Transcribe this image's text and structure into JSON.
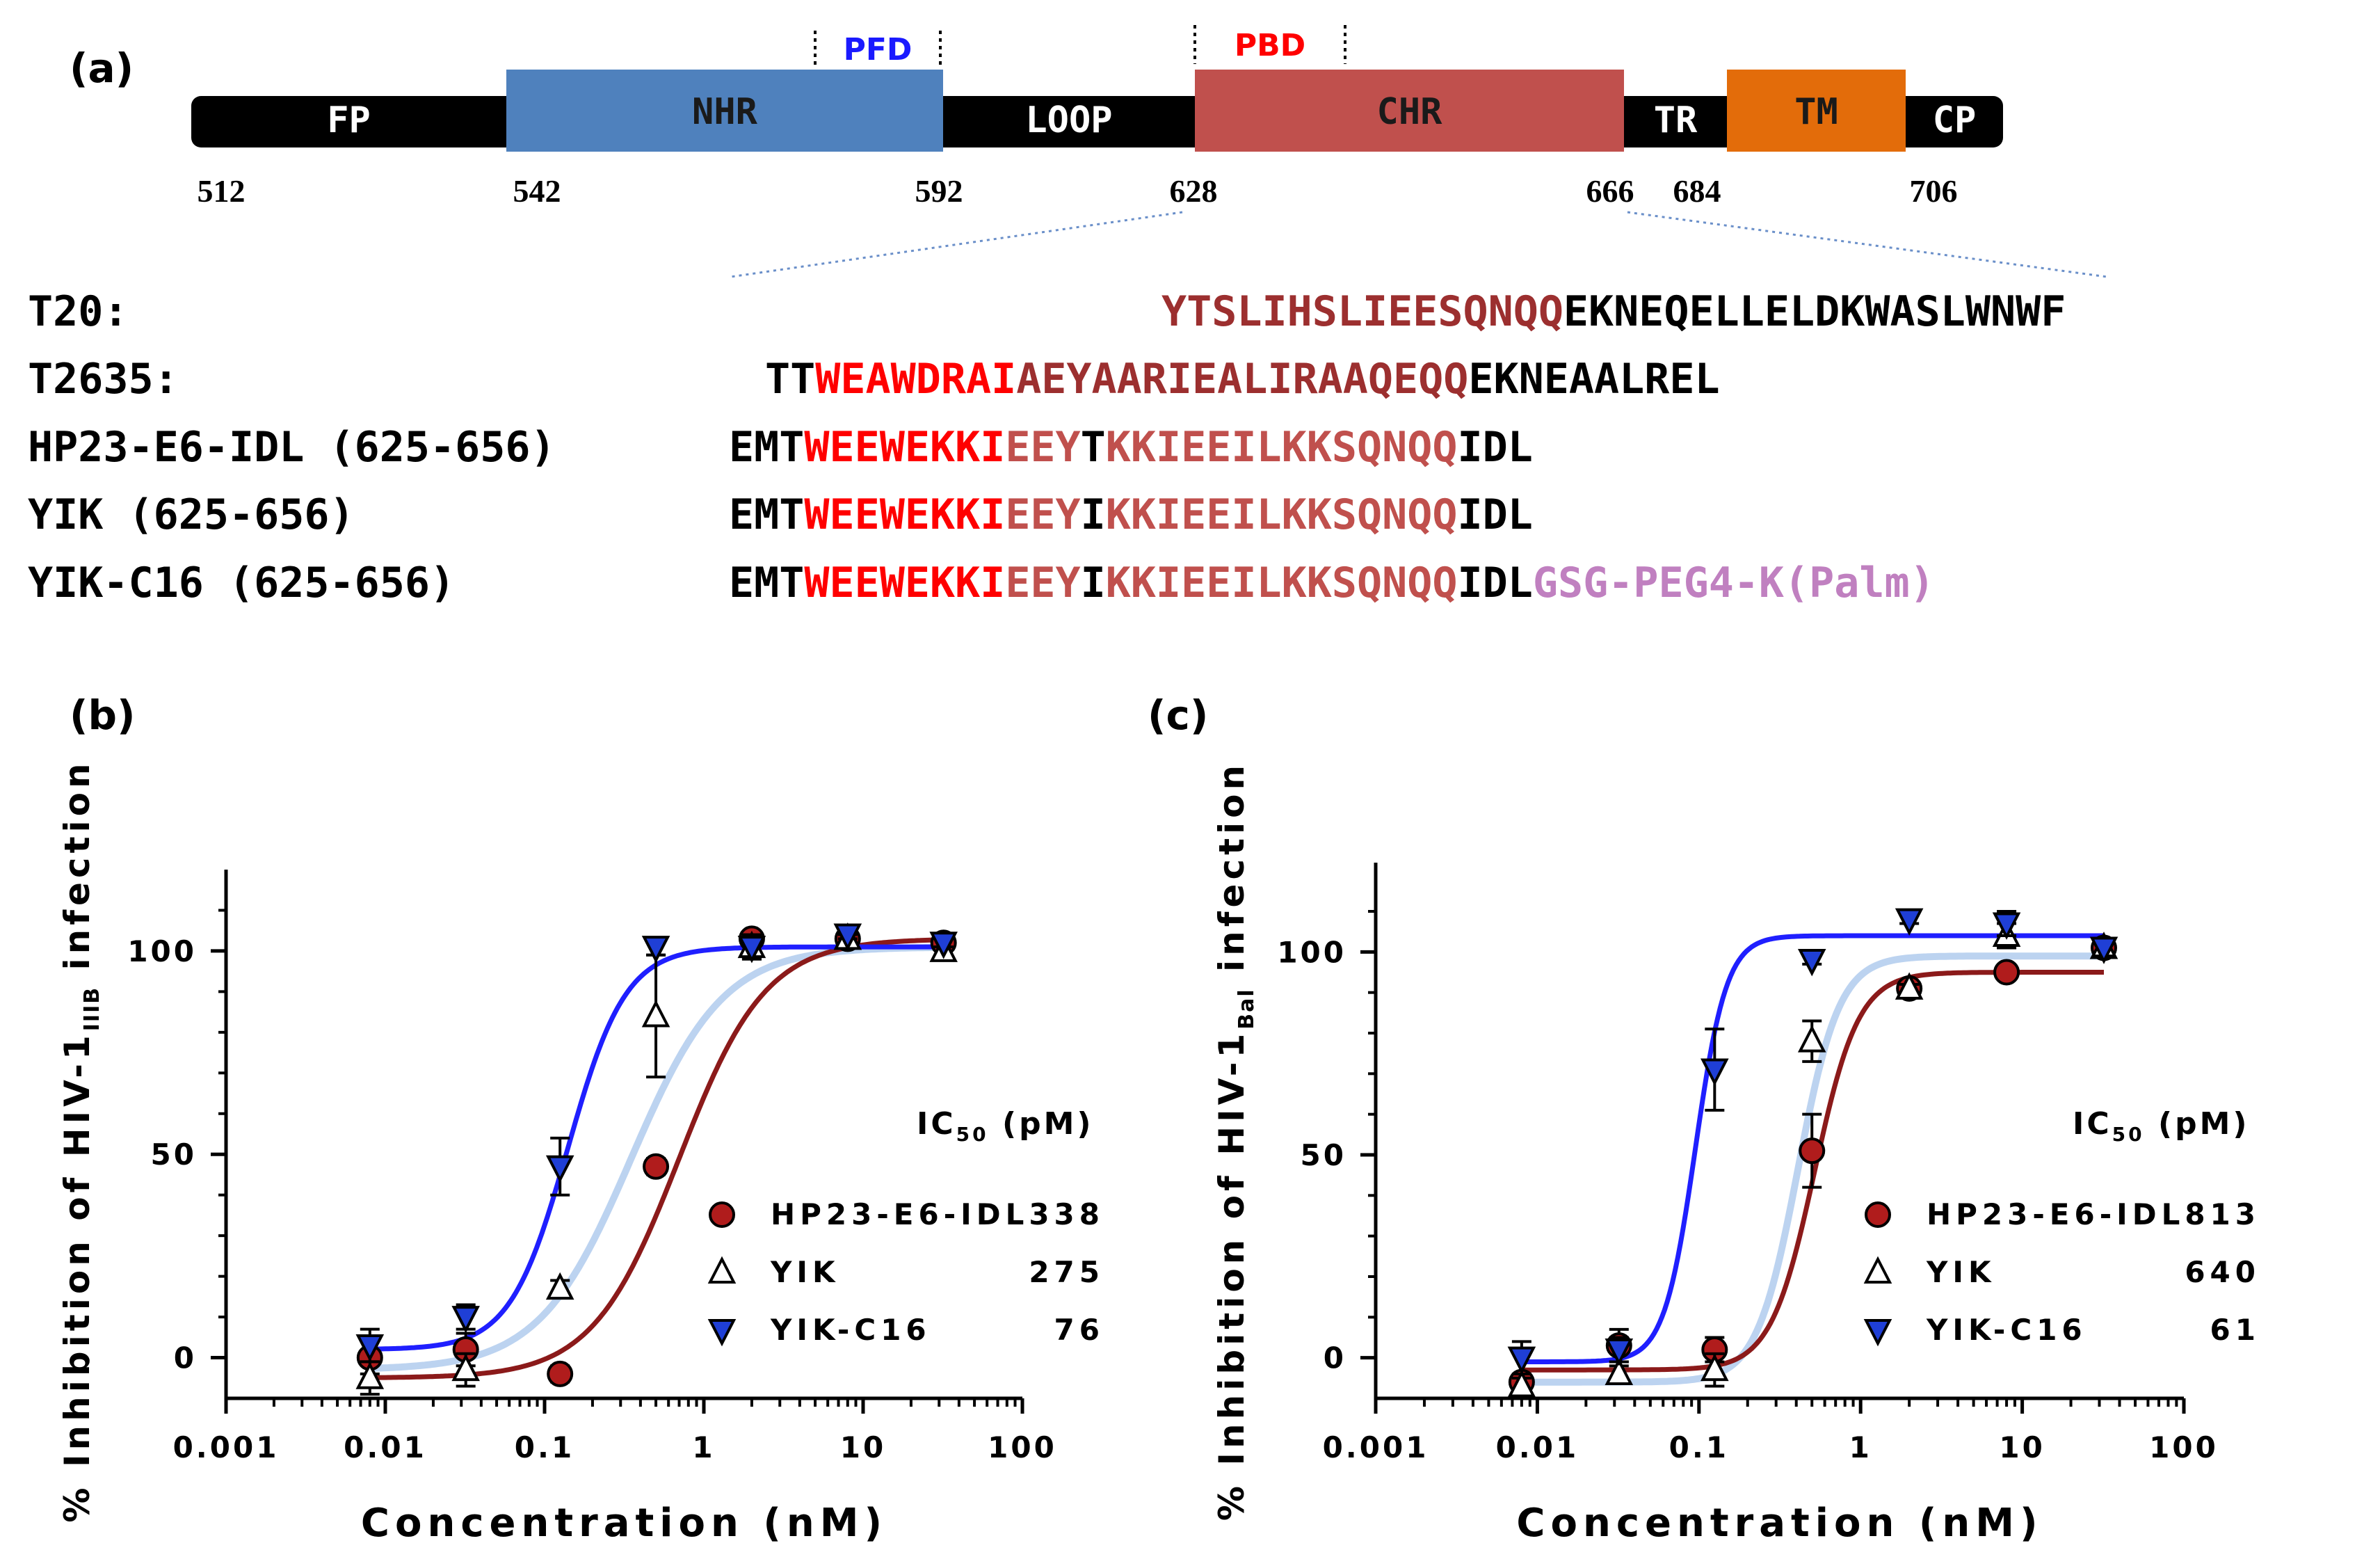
{
  "colors": {
    "black": "#000000",
    "nhr": "#4f81bd",
    "chr": "#c0504d",
    "tm": "#e36c0a",
    "pfd": "#1a1aff",
    "pbd": "#ff0000",
    "pbd_residues": "#ff0000",
    "chr_dark": "#9c2f2f",
    "chr_light": "#c0504d",
    "palm": "#c080c0",
    "dotted": "#6a8fc9",
    "curve_hp23": "#8b1a1a",
    "curve_yik": "#bcd3f0",
    "curve_c16": "#1f1fff",
    "marker_hp23": "#b01c1c",
    "marker_c16": "#1f3fd6"
  },
  "panel_a": {
    "label": "(a)",
    "pfd_label": "PFD",
    "pbd_label": "PBD",
    "domains": [
      {
        "name": "FP",
        "kind": "bar"
      },
      {
        "name": "NHR",
        "kind": "box"
      },
      {
        "name": "LOOP",
        "kind": "bar"
      },
      {
        "name": "CHR",
        "kind": "box"
      },
      {
        "name": "TR",
        "kind": "bar"
      },
      {
        "name": "TM",
        "kind": "box"
      },
      {
        "name": "CP",
        "kind": "bar"
      }
    ],
    "positions": [
      "512",
      "542",
      "592",
      "628",
      "666",
      "684",
      "706"
    ],
    "sequences": [
      {
        "name": "T20:",
        "segments": [
          {
            "text": "YTSLIHSLIEESQNQQ",
            "color": "chr_dark"
          },
          {
            "text": "EKNEQELLELDKWASLWNWF",
            "color": "black"
          }
        ]
      },
      {
        "name": "T2635:",
        "segments": [
          {
            "text": "TT",
            "color": "black"
          },
          {
            "text": "WEAWDRAI",
            "color": "pbd_residues"
          },
          {
            "text": "AEYAARIEALIRAAQEQQ",
            "color": "chr_dark"
          },
          {
            "text": "EKNEAALREL",
            "color": "black"
          }
        ]
      },
      {
        "name": "HP23-E6-IDL (625-656)",
        "segments": [
          {
            "text": "EMT",
            "color": "black"
          },
          {
            "text": "WEEWEKKI",
            "color": "pbd_residues"
          },
          {
            "text": "EEY",
            "color": "chr_light"
          },
          {
            "text": "T",
            "color": "black"
          },
          {
            "text": "KKIEEILKKSQNQQ",
            "color": "chr_light"
          },
          {
            "text": "IDL",
            "color": "black"
          }
        ]
      },
      {
        "name": "YIK (625-656)",
        "segments": [
          {
            "text": "EMT",
            "color": "black"
          },
          {
            "text": "WEEWEKKI",
            "color": "pbd_residues"
          },
          {
            "text": "EEY",
            "color": "chr_light"
          },
          {
            "text": "I",
            "color": "black"
          },
          {
            "text": "KKIEEILKKSQNQQ",
            "color": "chr_light"
          },
          {
            "text": "IDL",
            "color": "black"
          }
        ]
      },
      {
        "name": "YIK-C16 (625-656)",
        "segments": [
          {
            "text": "EMT",
            "color": "black"
          },
          {
            "text": "WEEWEKKI",
            "color": "pbd_residues"
          },
          {
            "text": "EEY",
            "color": "chr_light"
          },
          {
            "text": "I",
            "color": "black"
          },
          {
            "text": "KKIEEILKKSQNQQ",
            "color": "chr_light"
          },
          {
            "text": "IDL",
            "color": "black"
          },
          {
            "text": "GSG-PEG4-K(Palm)",
            "color": "palm"
          }
        ]
      }
    ]
  },
  "chart_data": [
    {
      "panel": "(b)",
      "type": "scatter",
      "title": "",
      "xlabel": "Concentration (nM)",
      "ylabel_prefix": "% Inhibition of HIV-1",
      "ylabel_sub": "IIIB",
      "ylabel_suffix": " infection",
      "xscale": "log",
      "xlim": [
        0.001,
        100
      ],
      "ylim": [
        -10,
        120
      ],
      "xticks": [
        0.001,
        0.01,
        0.1,
        1,
        10,
        100
      ],
      "xtick_labels": [
        "0.001",
        "0.01",
        "0.1",
        "1",
        "10",
        "100"
      ],
      "yticks": [
        0,
        50,
        100
      ],
      "ytick_labels": [
        "0",
        "50",
        "100"
      ],
      "legend_title": "IC",
      "legend_title_sub": "50",
      "legend_title_suffix": " (pM)",
      "legend_position": "right",
      "series": [
        {
          "name": "HP23-E6-IDL",
          "ic50": "338",
          "marker": "circle",
          "color": "marker_hp23",
          "curve_color": "curve_hp23",
          "fit": {
            "bottom": -5,
            "top": 103,
            "ec50": 0.7,
            "hill": 1.6
          },
          "points": [
            {
              "x": 0.008,
              "y": 0,
              "err": 4
            },
            {
              "x": 0.032,
              "y": 2,
              "err": 4
            },
            {
              "x": 0.125,
              "y": -4,
              "err": 2
            },
            {
              "x": 0.5,
              "y": 47,
              "err": 2
            },
            {
              "x": 2,
              "y": 103,
              "err": 1
            },
            {
              "x": 8,
              "y": 103,
              "err": 1
            },
            {
              "x": 32,
              "y": 102,
              "err": 1
            }
          ]
        },
        {
          "name": "YIK",
          "ic50": "275",
          "marker": "triangle-up-open",
          "color": "black",
          "curve_color": "curve_yik",
          "fit": {
            "bottom": -3,
            "top": 101,
            "ec50": 0.35,
            "hill": 1.5
          },
          "points": [
            {
              "x": 0.008,
              "y": -5,
              "err": 4
            },
            {
              "x": 0.032,
              "y": -3,
              "err": 4
            },
            {
              "x": 0.125,
              "y": 17,
              "err": 2
            },
            {
              "x": 0.5,
              "y": 84,
              "err": 15
            },
            {
              "x": 2,
              "y": 101,
              "err": 3
            },
            {
              "x": 8,
              "y": 103,
              "err": 1
            },
            {
              "x": 32,
              "y": 100,
              "err": 1
            }
          ]
        },
        {
          "name": "YIK-C16",
          "ic50": "76",
          "marker": "triangle-down",
          "color": "marker_c16",
          "curve_color": "curve_c16",
          "fit": {
            "bottom": 2,
            "top": 101,
            "ec50": 0.14,
            "hill": 2.4
          },
          "points": [
            {
              "x": 0.008,
              "y": 3,
              "err": 4
            },
            {
              "x": 0.032,
              "y": 10,
              "err": 3
            },
            {
              "x": 0.125,
              "y": 47,
              "err": 7
            },
            {
              "x": 0.5,
              "y": 101,
              "err": 2
            },
            {
              "x": 2,
              "y": 101,
              "err": 3
            },
            {
              "x": 8,
              "y": 104,
              "err": 1
            },
            {
              "x": 32,
              "y": 102,
              "err": 1
            }
          ]
        }
      ]
    },
    {
      "panel": "(c)",
      "type": "scatter",
      "title": "",
      "xlabel": "Concentration (nM)",
      "ylabel_prefix": "% Inhibition of HIV-1",
      "ylabel_sub": "Bal",
      "ylabel_suffix": " infection",
      "xscale": "log",
      "xlim": [
        0.001,
        100
      ],
      "ylim": [
        -10,
        122
      ],
      "xticks": [
        0.001,
        0.01,
        0.1,
        1,
        10,
        100
      ],
      "xtick_labels": [
        "0.001",
        "0.01",
        "0.1",
        "1",
        "10",
        "100"
      ],
      "yticks": [
        0,
        50,
        100
      ],
      "ytick_labels": [
        "0",
        "50",
        "100"
      ],
      "legend_title": "IC",
      "legend_title_sub": "50",
      "legend_title_suffix": " (pM)",
      "legend_position": "right",
      "series": [
        {
          "name": "HP23-E6-IDL",
          "ic50": "813",
          "marker": "circle",
          "color": "marker_hp23",
          "curve_color": "curve_hp23",
          "fit": {
            "bottom": -3,
            "top": 95,
            "ec50": 0.52,
            "hill": 3.2
          },
          "points": [
            {
              "x": 0.008,
              "y": -6,
              "err": 2
            },
            {
              "x": 0.032,
              "y": 3,
              "err": 4
            },
            {
              "x": 0.125,
              "y": 2,
              "err": 3
            },
            {
              "x": 0.5,
              "y": 51,
              "err": 9
            },
            {
              "x": 2,
              "y": 91,
              "err": 1
            },
            {
              "x": 8,
              "y": 95,
              "err": 1
            },
            {
              "x": 32,
              "y": 101,
              "err": 2
            }
          ]
        },
        {
          "name": "YIK",
          "ic50": "640",
          "marker": "triangle-up-open",
          "color": "black",
          "curve_color": "curve_yik",
          "fit": {
            "bottom": -6,
            "top": 99,
            "ec50": 0.41,
            "hill": 3.4
          },
          "points": [
            {
              "x": 0.008,
              "y": -7,
              "err": 2
            },
            {
              "x": 0.032,
              "y": -4,
              "err": 2
            },
            {
              "x": 0.125,
              "y": -3,
              "err": 4
            },
            {
              "x": 0.5,
              "y": 78,
              "err": 5
            },
            {
              "x": 2,
              "y": 91,
              "err": 1
            },
            {
              "x": 8,
              "y": 104,
              "err": 3
            },
            {
              "x": 32,
              "y": 101,
              "err": 1
            }
          ]
        },
        {
          "name": "YIK-C16",
          "ic50": "61",
          "marker": "triangle-down",
          "color": "marker_c16",
          "curve_color": "curve_c16",
          "fit": {
            "bottom": -1,
            "top": 104,
            "ec50": 0.095,
            "hill": 4.5
          },
          "points": [
            {
              "x": 0.008,
              "y": 0,
              "err": 4
            },
            {
              "x": 0.032,
              "y": 2,
              "err": 3
            },
            {
              "x": 0.125,
              "y": 71,
              "err": 10
            },
            {
              "x": 0.5,
              "y": 98,
              "err": 1
            },
            {
              "x": 2,
              "y": 108,
              "err": 1
            },
            {
              "x": 8,
              "y": 107,
              "err": 3
            },
            {
              "x": 32,
              "y": 101,
              "err": 2
            }
          ]
        }
      ]
    }
  ]
}
